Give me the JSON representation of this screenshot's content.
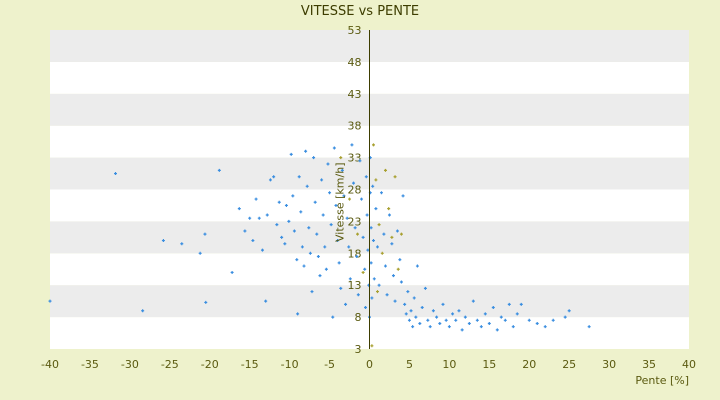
{
  "chart_data": {
    "type": "scatter",
    "title": "VITESSE vs PENTE",
    "xlabel": "Pente [%]",
    "ylabel": "Vitesse [km/h]",
    "xlim": [
      -40,
      40
    ],
    "ylim": [
      3,
      53
    ],
    "x_ticks": [
      -40,
      -35,
      -30,
      -25,
      -20,
      -15,
      -10,
      -5,
      0,
      5,
      10,
      15,
      20,
      25,
      30,
      35,
      40
    ],
    "y_ticks": [
      3,
      8,
      13,
      18,
      23,
      28,
      33,
      38,
      43,
      48,
      53
    ],
    "grid": "horizontal-bands",
    "legend": "none",
    "colors": {
      "background": "#eef2cc",
      "plot_band_light": "#ffffff",
      "plot_band_dark": "#ececec",
      "point_primary": "#3a8ee0",
      "point_secondary": "#a8a030",
      "zero_line": "#3d3d00"
    },
    "series": [
      {
        "color": "#3a8ee0",
        "points": [
          [
            -40,
            10.5
          ],
          [
            -31.8,
            30.5
          ],
          [
            -28.4,
            9.0
          ],
          [
            -25.8,
            20.0
          ],
          [
            -23.5,
            19.5
          ],
          [
            -21.2,
            18.0
          ],
          [
            -20.6,
            21.0
          ],
          [
            -20.5,
            10.3
          ],
          [
            -18.8,
            31.0
          ],
          [
            -17.2,
            15.0
          ],
          [
            -16.3,
            25.0
          ],
          [
            -15.6,
            21.5
          ],
          [
            -15.0,
            23.5
          ],
          [
            -14.6,
            20.0
          ],
          [
            -14.2,
            26.5
          ],
          [
            -13.8,
            23.5
          ],
          [
            -13.4,
            18.5
          ],
          [
            -13.0,
            10.5
          ],
          [
            -12.8,
            24.0
          ],
          [
            -12.4,
            29.5
          ],
          [
            -12.0,
            30.0
          ],
          [
            -11.6,
            22.5
          ],
          [
            -11.3,
            26.0
          ],
          [
            -11.0,
            20.5
          ],
          [
            -10.6,
            19.5
          ],
          [
            -10.4,
            25.5
          ],
          [
            -10.1,
            23.0
          ],
          [
            -9.8,
            33.5
          ],
          [
            -9.6,
            27.0
          ],
          [
            -9.4,
            21.5
          ],
          [
            -9.1,
            17.0
          ],
          [
            -9.0,
            8.5
          ],
          [
            -8.8,
            30.0
          ],
          [
            -8.6,
            24.5
          ],
          [
            -8.4,
            19.0
          ],
          [
            -8.2,
            16.0
          ],
          [
            -8.0,
            34.0
          ],
          [
            -7.8,
            28.5
          ],
          [
            -7.6,
            22.0
          ],
          [
            -7.4,
            18.0
          ],
          [
            -7.2,
            12.0
          ],
          [
            -7.0,
            33.0
          ],
          [
            -6.8,
            26.0
          ],
          [
            -6.6,
            21.0
          ],
          [
            -6.4,
            17.5
          ],
          [
            -6.2,
            14.5
          ],
          [
            -6.0,
            29.5
          ],
          [
            -5.8,
            24.0
          ],
          [
            -5.6,
            19.0
          ],
          [
            -5.4,
            15.5
          ],
          [
            -5.2,
            32.0
          ],
          [
            -5.0,
            27.5
          ],
          [
            -4.8,
            22.5
          ],
          [
            -4.6,
            8.0
          ],
          [
            -4.4,
            34.5
          ],
          [
            -4.2,
            25.5
          ],
          [
            -4.0,
            20.0
          ],
          [
            -3.8,
            16.5
          ],
          [
            -3.6,
            12.5
          ],
          [
            -3.4,
            31.0
          ],
          [
            -3.2,
            27.0
          ],
          [
            -3.0,
            10.0
          ],
          [
            -2.8,
            23.5
          ],
          [
            -2.6,
            19.0
          ],
          [
            -2.4,
            14.0
          ],
          [
            -2.2,
            35.0
          ],
          [
            -2.0,
            29.0
          ],
          [
            -1.8,
            22.0
          ],
          [
            -1.6,
            17.5
          ],
          [
            -1.4,
            11.5
          ],
          [
            -1.2,
            32.5
          ],
          [
            -1.0,
            26.5
          ],
          [
            -0.8,
            20.5
          ],
          [
            -0.6,
            15.5
          ],
          [
            -0.5,
            9.5
          ],
          [
            -0.4,
            30.0
          ],
          [
            -0.3,
            24.0
          ],
          [
            -0.2,
            18.5
          ],
          [
            -0.1,
            13.0
          ],
          [
            0.0,
            8.0
          ],
          [
            0.1,
            33.0
          ],
          [
            0.1,
            27.5
          ],
          [
            0.2,
            22.0
          ],
          [
            0.2,
            16.5
          ],
          [
            0.3,
            11.0
          ],
          [
            0.4,
            28.5
          ],
          [
            0.5,
            20.0
          ],
          [
            0.6,
            14.0
          ],
          [
            0.8,
            25.0
          ],
          [
            1.0,
            19.0
          ],
          [
            1.2,
            13.0
          ],
          [
            1.5,
            27.5
          ],
          [
            1.8,
            21.0
          ],
          [
            2.0,
            16.0
          ],
          [
            2.2,
            11.5
          ],
          [
            2.5,
            24.0
          ],
          [
            2.8,
            19.5
          ],
          [
            3.0,
            14.5
          ],
          [
            3.2,
            10.5
          ],
          [
            3.5,
            21.5
          ],
          [
            3.8,
            17.0
          ],
          [
            4.0,
            13.5
          ],
          [
            4.2,
            27.0
          ],
          [
            4.4,
            10.0
          ],
          [
            4.6,
            8.5
          ],
          [
            4.8,
            12.0
          ],
          [
            5.0,
            7.5
          ],
          [
            5.2,
            9.0
          ],
          [
            5.4,
            6.5
          ],
          [
            5.6,
            11.0
          ],
          [
            5.8,
            8.0
          ],
          [
            6.0,
            16.0
          ],
          [
            6.3,
            7.0
          ],
          [
            6.6,
            9.5
          ],
          [
            7.0,
            12.5
          ],
          [
            7.3,
            7.5
          ],
          [
            7.6,
            6.5
          ],
          [
            8.0,
            9.0
          ],
          [
            8.4,
            8.0
          ],
          [
            8.8,
            7.0
          ],
          [
            9.2,
            10.0
          ],
          [
            9.6,
            7.5
          ],
          [
            10.0,
            6.5
          ],
          [
            10.4,
            8.5
          ],
          [
            10.8,
            7.5
          ],
          [
            11.2,
            9.0
          ],
          [
            11.6,
            6.0
          ],
          [
            12.0,
            8.0
          ],
          [
            12.5,
            7.0
          ],
          [
            13.0,
            10.5
          ],
          [
            13.5,
            7.5
          ],
          [
            14.0,
            6.5
          ],
          [
            14.5,
            8.5
          ],
          [
            15.0,
            7.0
          ],
          [
            15.5,
            9.5
          ],
          [
            16.0,
            6.0
          ],
          [
            16.5,
            8.0
          ],
          [
            17.0,
            7.5
          ],
          [
            17.5,
            10.0
          ],
          [
            18.0,
            6.5
          ],
          [
            18.5,
            8.5
          ],
          [
            19.0,
            10.0
          ],
          [
            20.0,
            7.5
          ],
          [
            21.0,
            7.0
          ],
          [
            22.0,
            6.5
          ],
          [
            23.0,
            7.5
          ],
          [
            24.5,
            8.0
          ],
          [
            25.0,
            9.0
          ],
          [
            27.5,
            6.5
          ]
        ]
      },
      {
        "color": "#a8a030",
        "points": [
          [
            -3.6,
            33.0
          ],
          [
            -2.5,
            26.5
          ],
          [
            -1.5,
            21.0
          ],
          [
            -0.8,
            15.0
          ],
          [
            0.5,
            35.0
          ],
          [
            0.8,
            29.5
          ],
          [
            1.2,
            22.5
          ],
          [
            1.6,
            18.0
          ],
          [
            2.0,
            31.0
          ],
          [
            2.4,
            25.0
          ],
          [
            2.8,
            20.5
          ],
          [
            3.2,
            30.0
          ],
          [
            3.6,
            15.5
          ],
          [
            4.0,
            21.0
          ],
          [
            0.3,
            3.5
          ],
          [
            1.0,
            12.0
          ]
        ]
      }
    ]
  }
}
